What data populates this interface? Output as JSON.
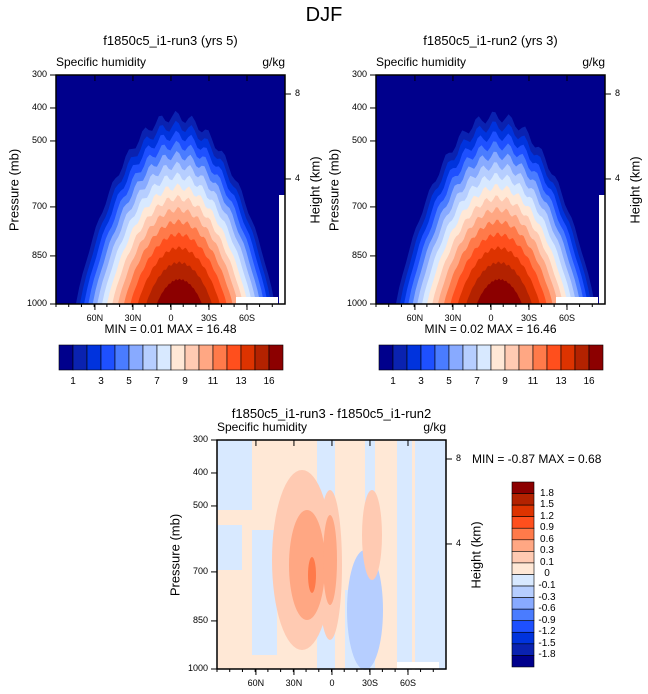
{
  "chart_data": {
    "type": "heatmap",
    "title": "DJF",
    "panels": [
      {
        "title": "f1850c5_i1-run3 (yrs 5)",
        "left_label": "Specific humidity",
        "units": "g/kg",
        "ylabel": "Pressure (mb)",
        "ylabel_right": "Height (km)",
        "yticks": [
          "300",
          "400",
          "500",
          "700",
          "850",
          "1000"
        ],
        "yticks_right": [
          "8",
          "4"
        ],
        "xticks": [
          "60N",
          "30N",
          "0",
          "30S",
          "60S"
        ],
        "min": "MIN =   0.01",
        "max": "MAX =  16.48",
        "colorbar_labels": [
          "1",
          "3",
          "5",
          "7",
          "9",
          "11",
          "13",
          "16"
        ]
      },
      {
        "title": "f1850c5_i1-run2 (yrs 3)",
        "left_label": "Specific humidity",
        "units": "g/kg",
        "ylabel": "Pressure (mb)",
        "ylabel_right": "Height (km)",
        "yticks": [
          "300",
          "400",
          "500",
          "700",
          "850",
          "1000"
        ],
        "yticks_right": [
          "8",
          "4"
        ],
        "xticks": [
          "60N",
          "30N",
          "0",
          "30S",
          "60S"
        ],
        "min": "MIN =   0.02",
        "max": "MAX =  16.46",
        "colorbar_labels": [
          "1",
          "3",
          "5",
          "7",
          "9",
          "11",
          "13",
          "16"
        ]
      },
      {
        "title": "f1850c5_i1-run3 - f1850c5_i1-run2",
        "left_label": "Specific humidity",
        "units": "g/kg",
        "ylabel": "Pressure (mb)",
        "ylabel_right": "Height (km)",
        "yticks": [
          "300",
          "400",
          "500",
          "700",
          "850",
          "1000"
        ],
        "yticks_right": [
          "8",
          "4"
        ],
        "xticks": [
          "60N",
          "30N",
          "0",
          "30S",
          "60S"
        ],
        "min": "MIN =  -0.87",
        "max": "MAX =   0.68",
        "colorbar_labels": [
          "1.8",
          "1.5",
          "1.2",
          "0.9",
          "0.6",
          "0.3",
          "0.1",
          "0",
          "-0.1",
          "-0.3",
          "-0.6",
          "-0.9",
          "-1.2",
          "-1.5",
          "-1.8"
        ]
      }
    ],
    "colors_abs": [
      "#00008c",
      "#0a22b0",
      "#0033dd",
      "#1e50ff",
      "#4a7cff",
      "#88aaff",
      "#b6ceff",
      "#d8e9ff",
      "#ffe8d6",
      "#ffcab2",
      "#ffa783",
      "#ff7a4a",
      "#ff4f1d",
      "#dd3300",
      "#b32200",
      "#8c0000"
    ],
    "colors_diff": [
      "#8c0000",
      "#b32200",
      "#dd3300",
      "#ff4f1d",
      "#ff7a4a",
      "#ffa783",
      "#ffcab2",
      "#ffe8d6",
      "#d8e9ff",
      "#b6ceff",
      "#88aaff",
      "#4a7cff",
      "#1e50ff",
      "#0033dd",
      "#0a22b0",
      "#00008c"
    ]
  }
}
